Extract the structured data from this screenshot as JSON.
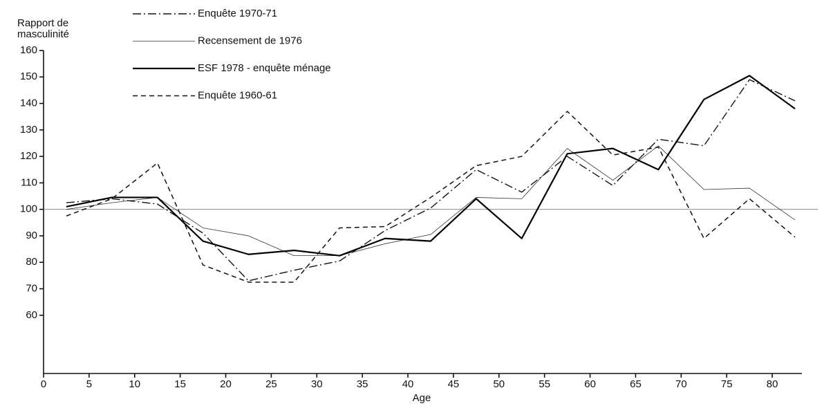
{
  "chart_data": {
    "type": "line",
    "y_label": [
      "Rapport de",
      "masculinité"
    ],
    "x_label": "Age",
    "x": [
      2.5,
      7.5,
      12.5,
      17.5,
      22.5,
      27.5,
      32.5,
      37.5,
      42.5,
      47.5,
      52.5,
      57.5,
      62.5,
      67.5,
      72.5,
      77.5,
      82.5
    ],
    "series": [
      {
        "name": "Enquête 1970-71",
        "color": "#111111",
        "dash": "12 4 2 4",
        "width": 1.4,
        "values": [
          102.5,
          104,
          102,
          91,
          73,
          77,
          80.5,
          92,
          100.5,
          115,
          106.5,
          120,
          109,
          126.5,
          124,
          149,
          141
        ]
      },
      {
        "name": "Recensement de 1976",
        "color": "#333333",
        "dash": "none",
        "width": 0.8,
        "values": [
          100,
          102.5,
          104.5,
          93,
          90,
          82.5,
          82.5,
          87,
          90.5,
          104.5,
          104,
          123,
          111,
          124,
          107.5,
          108,
          96
        ]
      },
      {
        "name": "ESF 1978 - enquête ménage",
        "color": "#000000",
        "dash": "none",
        "width": 2.2,
        "values": [
          101,
          104.5,
          104.5,
          88,
          83,
          84.5,
          82.5,
          89,
          88,
          104,
          89,
          121,
          123,
          115,
          141.5,
          150.5,
          138
        ]
      },
      {
        "name": "Enquête 1960-61",
        "color": "#111111",
        "dash": "7 5",
        "width": 1.5,
        "values": [
          97.5,
          104,
          117.5,
          79,
          72.5,
          72.5,
          93,
          93.5,
          104.5,
          116.5,
          120,
          137,
          120.5,
          123.5,
          89,
          104,
          89.5
        ]
      }
    ],
    "reference_line": 100,
    "xlim": [
      0,
      85
    ],
    "ylim": [
      38,
      160
    ],
    "xticks": [
      0,
      5,
      10,
      15,
      20,
      25,
      30,
      35,
      40,
      45,
      50,
      55,
      60,
      65,
      70,
      75,
      80
    ],
    "yticks": [
      60,
      70,
      80,
      90,
      100,
      110,
      120,
      130,
      140,
      150,
      160
    ],
    "legend": "top"
  }
}
